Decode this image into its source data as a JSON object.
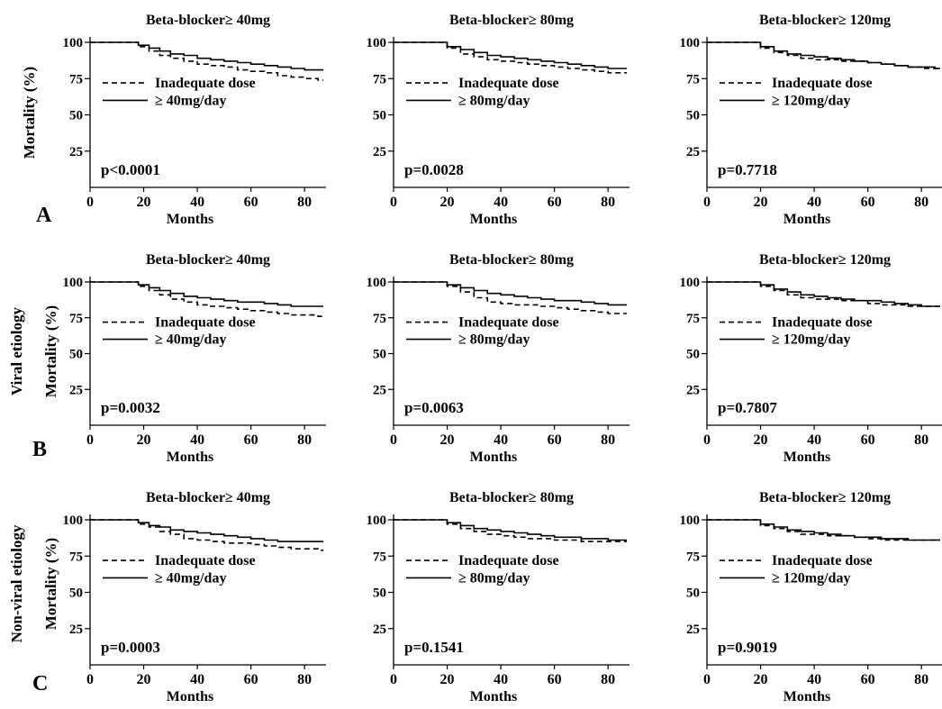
{
  "figure": {
    "row_labels": {
      "A": {
        "letter": "A",
        "side": "Mortality (%)",
        "side2": ""
      },
      "B": {
        "letter": "B",
        "side": "Viral etiology",
        "side2": "Mortality (%)"
      },
      "C": {
        "letter": "C",
        "side": "Non-viral etiology",
        "side2": "Mortality (%)"
      }
    },
    "legend_inadequate": "Inadequate dose",
    "x_label": "Months"
  },
  "chart_data": [
    {
      "type": "line",
      "row": "A",
      "col": 0,
      "title": "Beta-blocker≥ 40mg",
      "xlabel": "Months",
      "ylabel": "Mortality (%)",
      "xlim": [
        0,
        88
      ],
      "ylim": [
        0,
        100
      ],
      "xticks": [
        "0",
        "20",
        "40",
        "60",
        "80"
      ],
      "yticks": [
        "25",
        "50",
        "75",
        "100"
      ],
      "pvalue": "p<0.0001",
      "legend": [
        "Inadequate dose",
        "≥ 40mg/day"
      ],
      "series": [
        {
          "name": "Inadequate dose",
          "style": "dashed",
          "x": [
            0,
            14,
            18,
            22,
            26,
            30,
            35,
            40,
            45,
            50,
            55,
            60,
            65,
            70,
            75,
            80,
            85
          ],
          "y": [
            100,
            100,
            97,
            94,
            91,
            89,
            87,
            85,
            84,
            83,
            81,
            80,
            79,
            77,
            76,
            75,
            74
          ]
        },
        {
          "name": "≥ 40mg/day",
          "style": "solid",
          "x": [
            0,
            14,
            18,
            22,
            26,
            30,
            35,
            40,
            45,
            50,
            55,
            60,
            65,
            70,
            75,
            80,
            85
          ],
          "y": [
            100,
            100,
            98,
            96,
            94,
            92,
            91,
            89,
            88,
            87,
            86,
            85,
            84,
            83,
            82,
            81,
            81
          ]
        }
      ]
    },
    {
      "type": "line",
      "row": "A",
      "col": 1,
      "title": "Beta-blocker≥ 80mg",
      "xlabel": "Months",
      "ylabel": "Mortality (%)",
      "xlim": [
        0,
        88
      ],
      "ylim": [
        0,
        100
      ],
      "xticks": [
        "0",
        "20",
        "40",
        "60",
        "80"
      ],
      "yticks": [
        "25",
        "50",
        "75",
        "100"
      ],
      "pvalue": "p=0.0028",
      "legend": [
        "Inadequate dose",
        "≥ 80mg/day"
      ],
      "series": [
        {
          "name": "Inadequate dose",
          "style": "dashed",
          "x": [
            0,
            16,
            20,
            25,
            30,
            35,
            40,
            45,
            50,
            55,
            60,
            65,
            70,
            75,
            80,
            85
          ],
          "y": [
            100,
            100,
            96,
            92,
            90,
            88,
            87,
            86,
            85,
            84,
            83,
            82,
            81,
            80,
            79,
            79
          ]
        },
        {
          "name": "≥ 80mg/day",
          "style": "solid",
          "x": [
            0,
            16,
            20,
            25,
            30,
            35,
            40,
            45,
            50,
            55,
            60,
            65,
            70,
            75,
            80,
            85
          ],
          "y": [
            100,
            100,
            97,
            95,
            93,
            91,
            90,
            89,
            88,
            87,
            86,
            85,
            84,
            83,
            82,
            82
          ]
        }
      ]
    },
    {
      "type": "line",
      "row": "A",
      "col": 2,
      "title": "Beta-blocker≥ 120mg",
      "xlabel": "Months",
      "ylabel": "Mortality (%)",
      "xlim": [
        0,
        88
      ],
      "ylim": [
        0,
        100
      ],
      "xticks": [
        "0",
        "20",
        "40",
        "60",
        "80"
      ],
      "yticks": [
        "25",
        "50",
        "75",
        "100"
      ],
      "pvalue": "p=0.7718",
      "legend": [
        "Inadequate dose",
        "≥ 120mg/day"
      ],
      "series": [
        {
          "name": "Inadequate dose",
          "style": "dashed",
          "x": [
            0,
            16,
            20,
            25,
            30,
            35,
            40,
            45,
            50,
            55,
            60,
            65,
            70,
            75,
            80,
            85
          ],
          "y": [
            100,
            100,
            96,
            93,
            91,
            89,
            88,
            88,
            87,
            87,
            86,
            85,
            84,
            83,
            82,
            82
          ]
        },
        {
          "name": "≥ 120mg/day",
          "style": "solid",
          "x": [
            0,
            16,
            20,
            25,
            30,
            35,
            40,
            45,
            50,
            55,
            60,
            65,
            70,
            75,
            80,
            85
          ],
          "y": [
            100,
            100,
            97,
            94,
            92,
            91,
            90,
            89,
            88,
            87,
            86,
            85,
            84,
            83,
            83,
            82
          ]
        }
      ]
    },
    {
      "type": "line",
      "row": "B",
      "col": 0,
      "title": "Beta-blocker≥ 40mg",
      "xlabel": "Months",
      "ylabel": "Mortality (%)",
      "xlim": [
        0,
        88
      ],
      "ylim": [
        0,
        100
      ],
      "xticks": [
        "0",
        "20",
        "40",
        "60",
        "80"
      ],
      "yticks": [
        "25",
        "50",
        "75",
        "100"
      ],
      "pvalue": "p=0.0032",
      "legend": [
        "Inadequate dose",
        "≥ 40mg/day"
      ],
      "series": [
        {
          "name": "Inadequate dose",
          "style": "dashed",
          "x": [
            0,
            14,
            18,
            22,
            26,
            30,
            35,
            40,
            45,
            50,
            55,
            60,
            65,
            70,
            75,
            80,
            85
          ],
          "y": [
            100,
            100,
            97,
            94,
            91,
            88,
            86,
            84,
            83,
            82,
            81,
            80,
            79,
            78,
            77,
            77,
            76
          ]
        },
        {
          "name": "≥ 40mg/day",
          "style": "solid",
          "x": [
            0,
            14,
            18,
            22,
            26,
            30,
            35,
            40,
            45,
            50,
            55,
            60,
            65,
            70,
            75,
            80,
            85
          ],
          "y": [
            100,
            100,
            98,
            96,
            94,
            92,
            90,
            89,
            88,
            87,
            86,
            86,
            85,
            84,
            83,
            83,
            83
          ]
        }
      ]
    },
    {
      "type": "line",
      "row": "B",
      "col": 1,
      "title": "Beta-blocker≥ 80mg",
      "xlabel": "Months",
      "ylabel": "Mortality (%)",
      "xlim": [
        0,
        88
      ],
      "ylim": [
        0,
        100
      ],
      "xticks": [
        "0",
        "20",
        "40",
        "60",
        "80"
      ],
      "yticks": [
        "25",
        "50",
        "75",
        "100"
      ],
      "pvalue": "p=0.0063",
      "legend": [
        "Inadequate dose",
        "≥ 80mg/day"
      ],
      "series": [
        {
          "name": "Inadequate dose",
          "style": "dashed",
          "x": [
            0,
            16,
            20,
            25,
            30,
            35,
            40,
            45,
            50,
            55,
            60,
            65,
            70,
            75,
            80,
            85
          ],
          "y": [
            100,
            100,
            97,
            93,
            89,
            86,
            85,
            84,
            84,
            83,
            82,
            81,
            80,
            79,
            78,
            78
          ]
        },
        {
          "name": "≥ 80mg/day",
          "style": "solid",
          "x": [
            0,
            16,
            20,
            25,
            30,
            35,
            40,
            45,
            50,
            55,
            60,
            65,
            70,
            75,
            80,
            85
          ],
          "y": [
            100,
            100,
            98,
            96,
            94,
            92,
            91,
            90,
            89,
            88,
            87,
            87,
            86,
            85,
            84,
            84
          ]
        }
      ]
    },
    {
      "type": "line",
      "row": "B",
      "col": 2,
      "title": "Beta-blocker≥ 120mg",
      "xlabel": "Months",
      "ylabel": "Mortality (%)",
      "xlim": [
        0,
        88
      ],
      "ylim": [
        0,
        100
      ],
      "xticks": [
        "0",
        "20",
        "40",
        "60",
        "80"
      ],
      "yticks": [
        "25",
        "50",
        "75",
        "100"
      ],
      "pvalue": "p=0.7807",
      "legend": [
        "Inadequate dose",
        "≥ 120mg/day"
      ],
      "series": [
        {
          "name": "Inadequate dose",
          "style": "dashed",
          "x": [
            0,
            16,
            20,
            25,
            30,
            35,
            40,
            45,
            50,
            55,
            60,
            65,
            70,
            75,
            80,
            85
          ],
          "y": [
            100,
            100,
            97,
            94,
            91,
            89,
            88,
            88,
            87,
            87,
            85,
            84,
            84,
            83,
            83,
            83
          ]
        },
        {
          "name": "≥ 120mg/day",
          "style": "solid",
          "x": [
            0,
            16,
            20,
            25,
            30,
            35,
            40,
            45,
            50,
            55,
            60,
            65,
            70,
            75,
            80,
            85
          ],
          "y": [
            100,
            100,
            98,
            95,
            93,
            91,
            90,
            89,
            88,
            87,
            87,
            86,
            85,
            84,
            83,
            83
          ]
        }
      ]
    },
    {
      "type": "line",
      "row": "C",
      "col": 0,
      "title": "Beta-blocker≥ 40mg",
      "xlabel": "Months",
      "ylabel": "Mortality (%)",
      "xlim": [
        0,
        88
      ],
      "ylim": [
        0,
        100
      ],
      "xticks": [
        "0",
        "20",
        "40",
        "60",
        "80"
      ],
      "yticks": [
        "25",
        "50",
        "75",
        "100"
      ],
      "pvalue": "p=0.0003",
      "legend": [
        "Inadequate dose",
        "≥ 40mg/day"
      ],
      "series": [
        {
          "name": "Inadequate dose",
          "style": "dashed",
          "x": [
            0,
            14,
            18,
            22,
            26,
            30,
            35,
            40,
            45,
            50,
            55,
            60,
            65,
            70,
            75,
            80,
            85
          ],
          "y": [
            100,
            100,
            97,
            95,
            92,
            90,
            87,
            86,
            85,
            84,
            84,
            83,
            82,
            81,
            80,
            80,
            79
          ]
        },
        {
          "name": "≥ 40mg/day",
          "style": "solid",
          "x": [
            0,
            14,
            18,
            22,
            26,
            30,
            35,
            40,
            45,
            50,
            55,
            60,
            65,
            70,
            75,
            80,
            85
          ],
          "y": [
            100,
            100,
            98,
            96,
            95,
            93,
            92,
            91,
            90,
            89,
            88,
            87,
            86,
            85,
            85,
            85,
            85
          ]
        }
      ]
    },
    {
      "type": "line",
      "row": "C",
      "col": 1,
      "title": "Beta-blocker≥ 80mg",
      "xlabel": "Months",
      "ylabel": "Mortality (%)",
      "xlim": [
        0,
        88
      ],
      "ylim": [
        0,
        100
      ],
      "xticks": [
        "0",
        "20",
        "40",
        "60",
        "80"
      ],
      "yticks": [
        "25",
        "50",
        "75",
        "100"
      ],
      "pvalue": "p=0.1541",
      "legend": [
        "Inadequate dose",
        "≥ 80mg/day"
      ],
      "series": [
        {
          "name": "Inadequate dose",
          "style": "dashed",
          "x": [
            0,
            16,
            20,
            25,
            30,
            35,
            40,
            45,
            50,
            55,
            60,
            65,
            70,
            75,
            80,
            85
          ],
          "y": [
            100,
            100,
            97,
            94,
            92,
            90,
            89,
            88,
            87,
            87,
            86,
            86,
            85,
            85,
            85,
            85
          ]
        },
        {
          "name": "≥ 80mg/day",
          "style": "solid",
          "x": [
            0,
            16,
            20,
            25,
            30,
            35,
            40,
            45,
            50,
            55,
            60,
            65,
            70,
            75,
            80,
            85
          ],
          "y": [
            100,
            100,
            98,
            96,
            94,
            93,
            92,
            91,
            90,
            89,
            88,
            88,
            87,
            87,
            86,
            86
          ]
        }
      ]
    },
    {
      "type": "line",
      "row": "C",
      "col": 2,
      "title": "Beta-blocker≥ 120mg",
      "xlabel": "Months",
      "ylabel": "Mortality (%)",
      "xlim": [
        0,
        88
      ],
      "ylim": [
        0,
        100
      ],
      "xticks": [
        "0",
        "20",
        "40",
        "60",
        "80"
      ],
      "yticks": [
        "25",
        "50",
        "75",
        "100"
      ],
      "pvalue": "p=0.9019",
      "legend": [
        "Inadequate dose",
        "≥ 120mg/day"
      ],
      "series": [
        {
          "name": "Inadequate dose",
          "style": "dashed",
          "x": [
            0,
            16,
            20,
            25,
            30,
            35,
            40,
            45,
            50,
            55,
            60,
            65,
            70,
            75,
            80,
            85
          ],
          "y": [
            100,
            100,
            96,
            94,
            92,
            90,
            90,
            89,
            89,
            88,
            87,
            86,
            86,
            86,
            86,
            86
          ]
        },
        {
          "name": "≥ 120mg/day",
          "style": "solid",
          "x": [
            0,
            16,
            20,
            25,
            30,
            35,
            40,
            45,
            50,
            55,
            60,
            65,
            70,
            75,
            80,
            85
          ],
          "y": [
            100,
            100,
            97,
            95,
            93,
            92,
            91,
            90,
            89,
            88,
            88,
            87,
            87,
            86,
            86,
            86
          ]
        }
      ]
    }
  ]
}
